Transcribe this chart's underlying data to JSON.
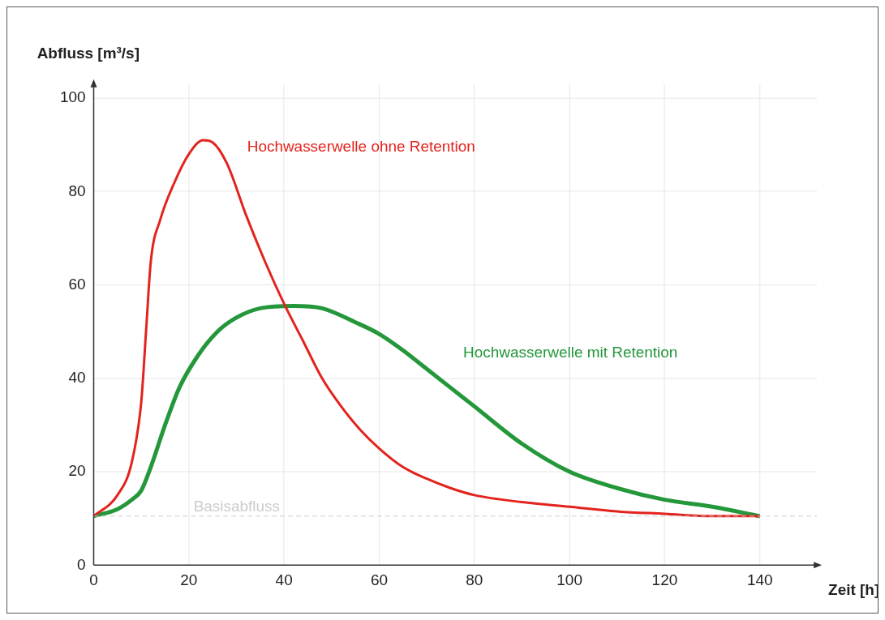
{
  "chart_data": {
    "type": "line",
    "xlabel": "Zeit [h]",
    "ylabel": "Abfluss [m³/s]",
    "xlim": [
      0,
      152
    ],
    "ylim": [
      0,
      103
    ],
    "xticks": [
      0,
      20,
      40,
      60,
      80,
      100,
      120,
      140
    ],
    "yticks": [
      0,
      20,
      40,
      60,
      80,
      100
    ],
    "grid": true,
    "legend": false,
    "marker": "none",
    "line_style": "solid",
    "series": [
      {
        "name": "Hochwasserwelle ohne Retention",
        "color": "#e3231d",
        "x": [
          0,
          5,
          8,
          10,
          11,
          12,
          14,
          17,
          20,
          23,
          25,
          28,
          32,
          36,
          40,
          44,
          48,
          52,
          56,
          60,
          65,
          70,
          75,
          80,
          90,
          100,
          110,
          120,
          130,
          140
        ],
        "values": [
          10.5,
          15,
          22,
          35,
          50,
          65,
          74,
          82,
          88,
          91,
          90.5,
          86,
          75,
          65,
          56,
          48,
          40,
          34,
          29,
          25,
          21,
          18.5,
          16.5,
          15,
          13.5,
          12.5,
          11.5,
          11,
          10.5,
          10.5
        ]
      },
      {
        "name": "Hochwasserwelle mit Retention",
        "color": "#23973a",
        "x": [
          0,
          5,
          8,
          10,
          12,
          15,
          18,
          22,
          26,
          30,
          35,
          42,
          48,
          55,
          60,
          65,
          70,
          75,
          80,
          90,
          100,
          110,
          120,
          130,
          140
        ],
        "values": [
          10.5,
          12,
          14,
          16,
          21,
          30,
          38,
          45,
          50,
          53,
          55,
          55.5,
          55,
          52,
          49.5,
          46,
          42,
          38,
          34,
          26,
          20,
          16.5,
          14,
          12.5,
          10.5
        ]
      }
    ],
    "ref_lines": [
      {
        "axis": "y",
        "value": 10.5,
        "label": "Basisabfluss",
        "color": "#cccccc",
        "line_style": "dashed"
      }
    ]
  }
}
